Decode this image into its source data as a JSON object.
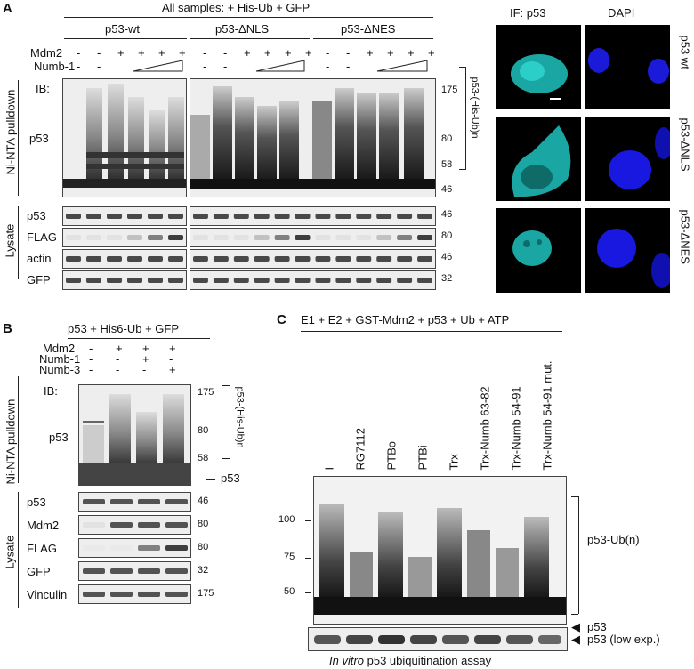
{
  "A": {
    "panel_letter": "A",
    "header": "All samples: + His-Ub + GFP",
    "groups": [
      "p53-wt",
      "p53-ΔNLS",
      "p53-ΔNES"
    ],
    "row_mdm2": "Mdm2",
    "row_numb": "Numb-1",
    "mdm2_signs": [
      "-",
      "-",
      "+",
      "+",
      "+",
      "+"
    ],
    "numb_signs": [
      "-",
      "-"
    ],
    "ib": "IB:",
    "p53": "p53",
    "pulldown_label": "Ni-NTA pulldown",
    "lysate_label": "Lysate",
    "mw_pulldown": [
      "175",
      "80",
      "58",
      "46"
    ],
    "bracket_label": "p53-(His-Ub)n",
    "lysate_rows": [
      "p53",
      "FLAG",
      "actin",
      "GFP"
    ],
    "lysate_mw": [
      "46",
      "80",
      "46",
      "32"
    ],
    "if_header": "IF: p53",
    "dapi_header": "DAPI",
    "if_rows": [
      "p53 wt",
      "p53-ΔNLS",
      "p53-ΔNES"
    ]
  },
  "B": {
    "panel_letter": "B",
    "header": "p53 + His6-Ub + GFP",
    "rows": [
      "Mdm2",
      "Numb-1",
      "Numb-3"
    ],
    "mdm2_signs": [
      "-",
      "+",
      "+",
      "+"
    ],
    "numb1_signs": [
      "-",
      "-",
      "+",
      "-"
    ],
    "numb3_signs": [
      "-",
      "-",
      "-",
      "+"
    ],
    "ib": "IB:",
    "p53": "p53",
    "pulldown_label": "Ni-NTA pulldown",
    "lysate_label": "Lysate",
    "mw_pulldown": [
      "175",
      "80",
      "58"
    ],
    "free_p53": "p53",
    "bracket_label": "p53-(His-Ub)n",
    "lysate_rows": [
      "p53",
      "Mdm2",
      "FLAG",
      "GFP",
      "Vinculin"
    ],
    "lysate_mw": [
      "46",
      "80",
      "80",
      "32",
      "175"
    ]
  },
  "C": {
    "panel_letter": "C",
    "header": "E1 + E2 + GST-Mdm2 + p53 + Ub + ATP",
    "lanes": [
      "I",
      "RG7112",
      "PTBo",
      "PTBi",
      "Trx",
      "Trx-Numb 63-82",
      "Trx-Numb 54-91",
      "Trx-Numb 54-91 mut."
    ],
    "mw": [
      "100",
      "75",
      "50"
    ],
    "ub_label": "p53-Ub(n)",
    "p53_label": "p53",
    "low_exp": "p53 (low exp.)",
    "caption_em": "In vitro",
    "caption_rest": " p53 ubiquitination assay"
  }
}
